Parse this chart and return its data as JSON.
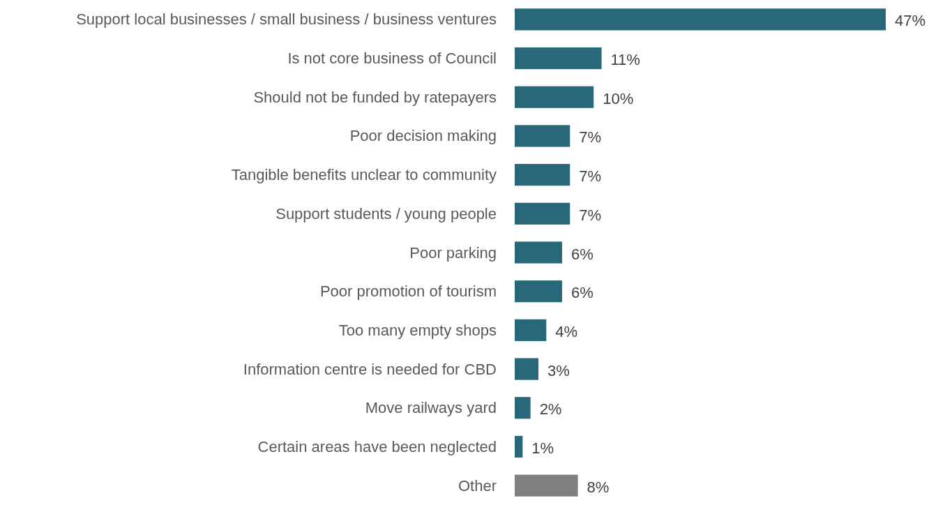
{
  "chart_data": {
    "type": "bar",
    "orientation": "horizontal",
    "categories": [
      "Support local businesses / small business / business ventures",
      "Is not core business of Council",
      "Should not be funded by ratepayers",
      "Poor decision making",
      "Tangible benefits unclear to community",
      "Support students / young people",
      "Poor parking",
      "Poor promotion of tourism",
      "Too many empty shops",
      "Information centre is needed for CBD",
      "Move railways yard",
      "Certain areas have been neglected",
      "Other"
    ],
    "values": [
      47,
      11,
      10,
      7,
      7,
      7,
      6,
      6,
      4,
      3,
      2,
      1,
      8
    ],
    "colors": [
      "#28687a",
      "#28687a",
      "#28687a",
      "#28687a",
      "#28687a",
      "#28687a",
      "#28687a",
      "#28687a",
      "#28687a",
      "#28687a",
      "#28687a",
      "#28687a",
      "#7f7f7f"
    ],
    "value_labels": [
      "47%",
      "11%",
      "10%",
      "7%",
      "7%",
      "7%",
      "6%",
      "6%",
      "4%",
      "3%",
      "2%",
      "1%",
      "8%"
    ]
  }
}
